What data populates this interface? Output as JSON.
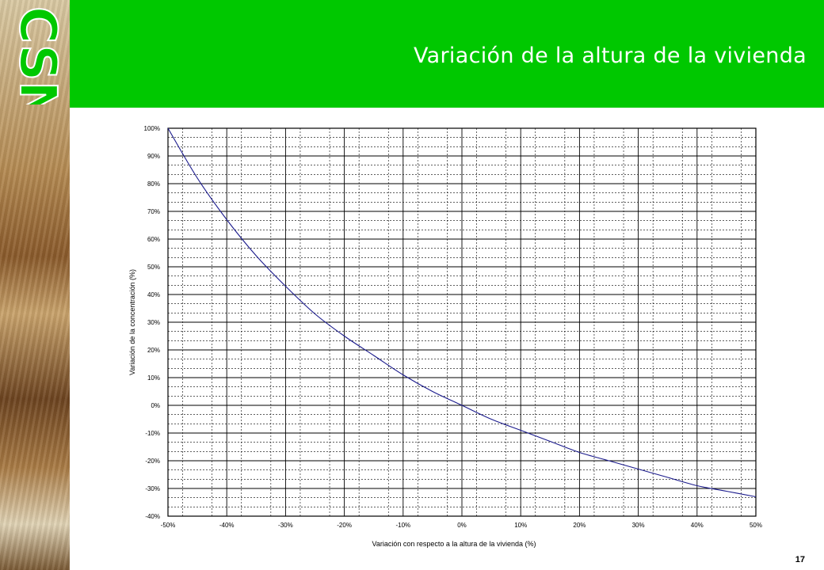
{
  "logo": {
    "text": "CSN",
    "color": "#00c800"
  },
  "header": {
    "title": "Variación de la altura de la vivienda",
    "background": "#00c800"
  },
  "page_number": "17",
  "chart_data": {
    "type": "line",
    "title": "",
    "xlabel": "Variación con respecto a la altura de la vivienda (%)",
    "ylabel": "Variación de la concentración (%)",
    "xlim": [
      -50,
      50
    ],
    "ylim": [
      -40,
      100
    ],
    "x_ticks": [
      -50,
      -40,
      -30,
      -20,
      -10,
      0,
      10,
      20,
      30,
      40,
      50
    ],
    "y_ticks": [
      -40,
      -30,
      -20,
      -10,
      0,
      10,
      20,
      30,
      40,
      50,
      60,
      70,
      80,
      90,
      100
    ],
    "x_tick_labels": [
      "-50%",
      "-40%",
      "-30%",
      "-20%",
      "-10%",
      "0%",
      "10%",
      "20%",
      "30%",
      "40%",
      "50%"
    ],
    "y_tick_labels": [
      "-40%",
      "-30%",
      "-20%",
      "-10%",
      "0%",
      "10%",
      "20%",
      "30%",
      "40%",
      "50%",
      "60%",
      "70%",
      "80%",
      "90%",
      "100%"
    ],
    "grid": true,
    "series_color": "#1a1a8c",
    "x": [
      -50,
      -45,
      -40,
      -35,
      -30,
      -25,
      -20,
      -15,
      -10,
      -5,
      0,
      5,
      10,
      15,
      20,
      25,
      30,
      35,
      40,
      45,
      50
    ],
    "values": [
      100,
      82,
      67,
      54,
      43,
      33,
      25,
      18,
      11,
      5,
      0,
      -5,
      -9,
      -13,
      -17,
      -20,
      -23,
      -26,
      -29,
      -31,
      -33
    ]
  }
}
